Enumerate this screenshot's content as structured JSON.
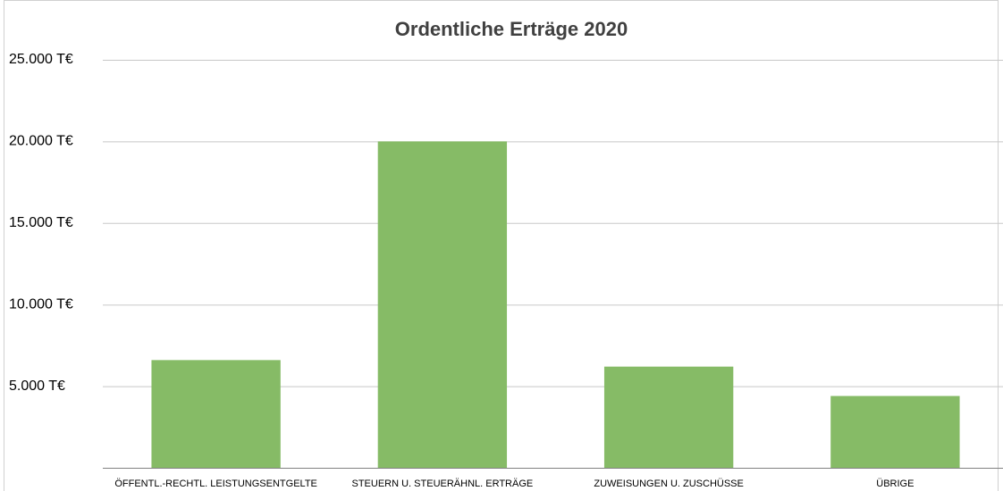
{
  "chart_data": {
    "type": "bar",
    "title": "Ordentliche Erträge 2020",
    "categories": [
      "ÖFFENTL.-RECHTL. LEISTUNGSENTGELTE",
      "STEUERN U. STEUERÄHNL. ERTRÄGE",
      "ZUWEISUNGEN U. ZUSCHÜSSE",
      "ÜBRIGE"
    ],
    "values": [
      6600,
      20000,
      6200,
      4400
    ],
    "color": "#86bb66",
    "ylim": [
      0,
      25000
    ],
    "yticks": [
      {
        "value": 5000,
        "label": "5.000 T€"
      },
      {
        "value": 10000,
        "label": "10.000 T€"
      },
      {
        "value": 15000,
        "label": "15.000 T€"
      },
      {
        "value": 20000,
        "label": "20.000 T€"
      },
      {
        "value": 25000,
        "label": "25.000 T€"
      }
    ],
    "grid": true
  }
}
